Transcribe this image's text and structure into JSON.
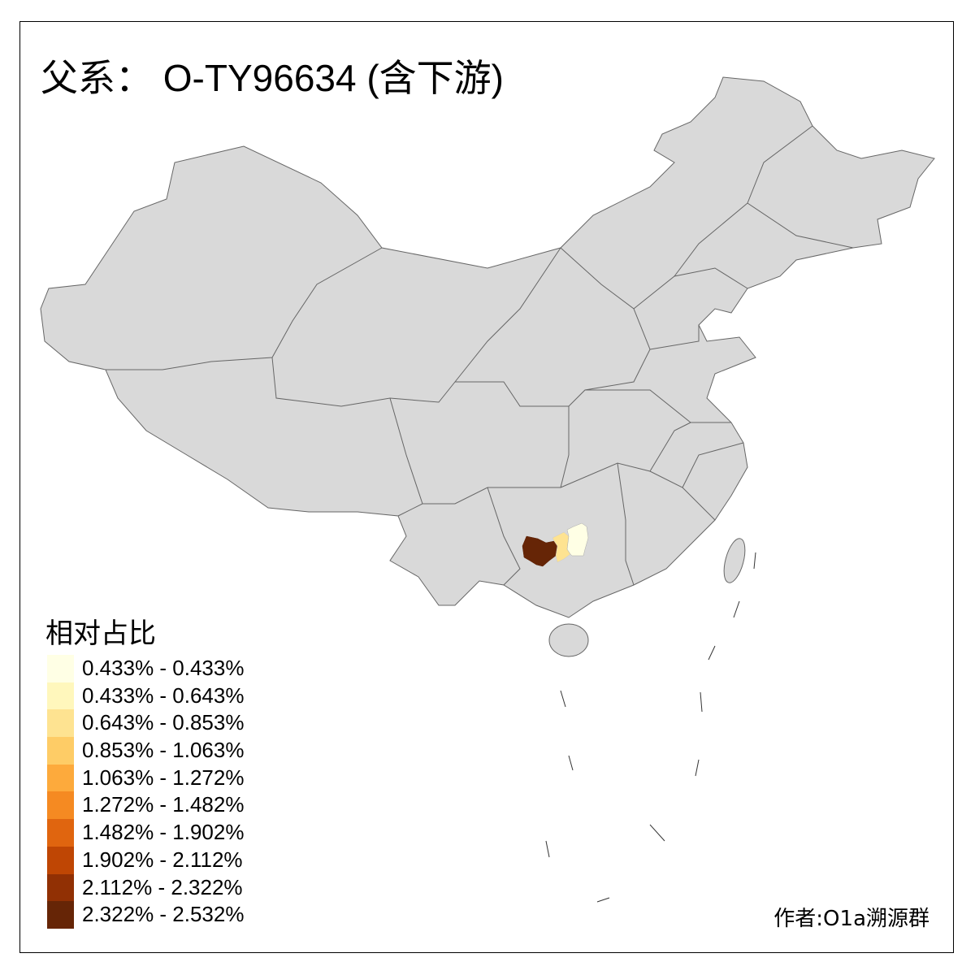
{
  "title": "父系： O-TY96634 (含下游)",
  "legend": {
    "title": "相对占比",
    "items": [
      {
        "label": "0.433% - 0.433%",
        "color": "#FFFFE5"
      },
      {
        "label": "0.433% - 0.643%",
        "color": "#FFF7BC"
      },
      {
        "label": "0.643% - 0.853%",
        "color": "#FEE391"
      },
      {
        "label": "0.853% - 1.063%",
        "color": "#FECC66"
      },
      {
        "label": "1.063% - 1.272%",
        "color": "#FDAA3C"
      },
      {
        "label": "1.272% - 1.482%",
        "color": "#F58A22"
      },
      {
        "label": "1.482% - 1.902%",
        "color": "#E0650F"
      },
      {
        "label": "1.902% - 2.112%",
        "color": "#BF4604"
      },
      {
        "label": "2.112% - 2.322%",
        "color": "#913004"
      },
      {
        "label": "2.322% - 2.532%",
        "color": "#662506"
      }
    ]
  },
  "map": {
    "base_color": "#D9D9D9",
    "border_color": "#666666",
    "highlighted_regions": [
      {
        "bin": "2.322% - 2.532%",
        "color": "#662506"
      },
      {
        "bin": "0.643% - 0.853%",
        "color": "#FEE391"
      },
      {
        "bin": "0.433% - 0.433%",
        "color": "#FFFFE5"
      }
    ]
  },
  "author": "作者:O1a溯源群"
}
